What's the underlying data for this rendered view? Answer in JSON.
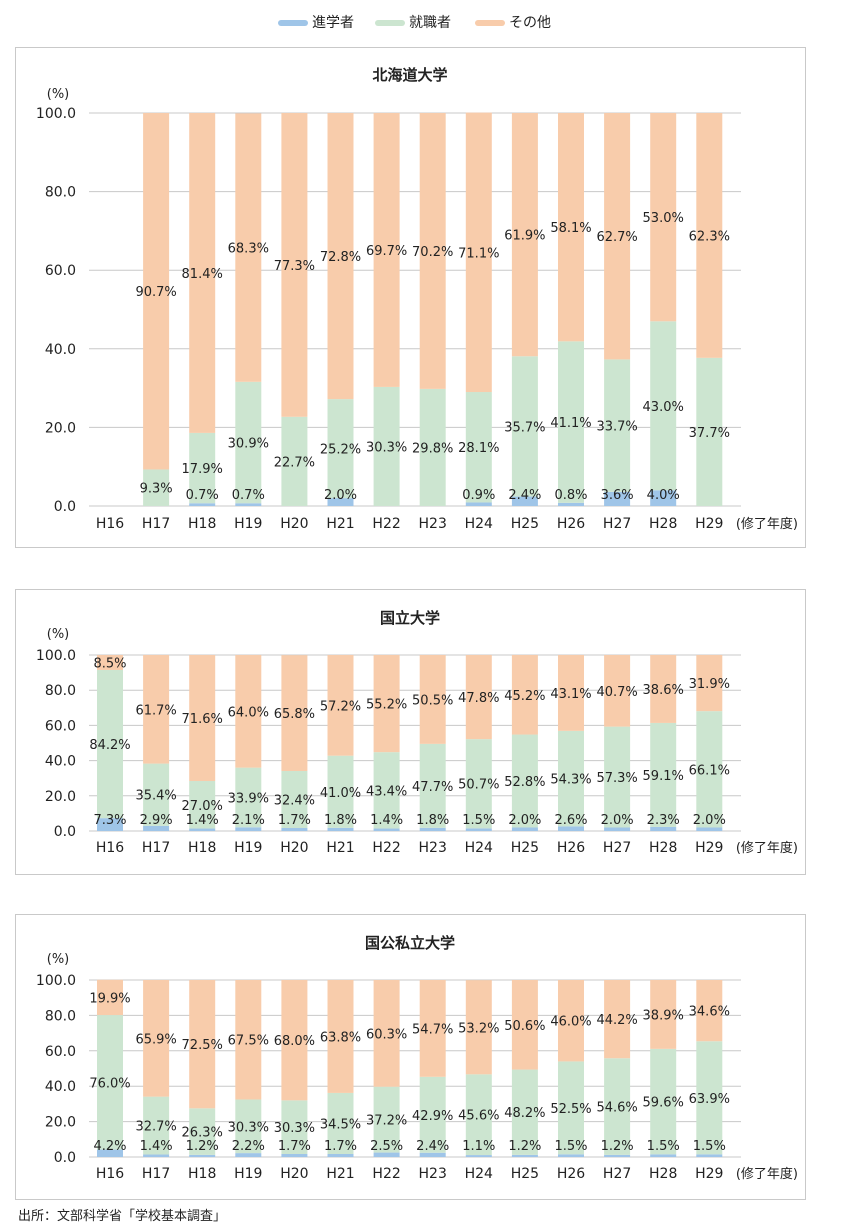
{
  "legend": [
    {
      "label": "進学者",
      "color": "#9fc5e8"
    },
    {
      "label": "就職者",
      "color": "#cce5d0"
    },
    {
      "label": "その他",
      "color": "#f8ccab"
    }
  ],
  "source_note": "出所：文部科学省「学校基本調査」",
  "chart_data": [
    {
      "type": "bar",
      "stacked": true,
      "title": "北海道大学",
      "ylabel": "(%)",
      "xlabel": "(修了年度)",
      "ylim": [
        0,
        100
      ],
      "yticks": [
        "0.0",
        "20.0",
        "40.0",
        "60.0",
        "80.0",
        "100.0"
      ],
      "categories": [
        "H16",
        "H17",
        "H18",
        "H19",
        "H20",
        "H21",
        "H22",
        "H23",
        "H24",
        "H25",
        "H26",
        "H27",
        "H28",
        "H29"
      ],
      "series": [
        {
          "name": "進学者",
          "color": "#9fc5e8",
          "values": [
            null,
            0,
            0.7,
            0.7,
            0,
            2.0,
            0,
            0,
            0.9,
            2.4,
            0.8,
            3.6,
            4.0,
            0
          ],
          "labels": [
            "",
            "",
            "0.7%",
            "0.7%",
            "",
            "2.0%",
            "",
            "",
            "0.9%",
            "2.4%",
            "0.8%",
            "3.6%",
            "4.0%",
            ""
          ]
        },
        {
          "name": "就職者",
          "color": "#cce5d0",
          "values": [
            null,
            9.3,
            17.9,
            30.9,
            22.7,
            25.2,
            30.3,
            29.8,
            28.1,
            35.7,
            41.1,
            33.7,
            43.0,
            37.7
          ],
          "labels": [
            "",
            "9.3%",
            "17.9%",
            "30.9%",
            "22.7%",
            "25.2%",
            "30.3%",
            "29.8%",
            "28.1%",
            "35.7%",
            "41.1%",
            "33.7%",
            "43.0%",
            "37.7%"
          ]
        },
        {
          "name": "その他",
          "color": "#f8ccab",
          "values": [
            null,
            90.7,
            81.4,
            68.3,
            77.3,
            72.8,
            69.7,
            70.2,
            71.1,
            61.9,
            58.1,
            62.7,
            53.0,
            62.3
          ],
          "labels": [
            "",
            "90.7%",
            "81.4%",
            "68.3%",
            "77.3%",
            "72.8%",
            "69.7%",
            "70.2%",
            "71.1%",
            "61.9%",
            "58.1%",
            "62.7%",
            "53.0%",
            "62.3%"
          ]
        }
      ]
    },
    {
      "type": "bar",
      "stacked": true,
      "title": "国立大学",
      "ylabel": "(%)",
      "xlabel": "(修了年度)",
      "ylim": [
        0,
        100
      ],
      "yticks": [
        "0.0",
        "20.0",
        "40.0",
        "60.0",
        "80.0",
        "100.0"
      ],
      "categories": [
        "H16",
        "H17",
        "H18",
        "H19",
        "H20",
        "H21",
        "H22",
        "H23",
        "H24",
        "H25",
        "H26",
        "H27",
        "H28",
        "H29"
      ],
      "series": [
        {
          "name": "進学者",
          "color": "#9fc5e8",
          "values": [
            7.3,
            2.9,
            1.4,
            2.1,
            1.7,
            1.8,
            1.4,
            1.8,
            1.5,
            2.0,
            2.6,
            2.0,
            2.3,
            2.0
          ],
          "labels": [
            "7.3%",
            "2.9%",
            "1.4%",
            "2.1%",
            "1.7%",
            "1.8%",
            "1.4%",
            "1.8%",
            "1.5%",
            "2.0%",
            "2.6%",
            "2.0%",
            "2.3%",
            "2.0%"
          ]
        },
        {
          "name": "就職者",
          "color": "#cce5d0",
          "values": [
            84.2,
            35.4,
            27.0,
            33.9,
            32.4,
            41.0,
            43.4,
            47.7,
            50.7,
            52.8,
            54.3,
            57.3,
            59.1,
            66.1
          ],
          "labels": [
            "84.2%",
            "35.4%",
            "27.0%",
            "33.9%",
            "32.4%",
            "41.0%",
            "43.4%",
            "47.7%",
            "50.7%",
            "52.8%",
            "54.3%",
            "57.3%",
            "59.1%",
            "66.1%"
          ]
        },
        {
          "name": "その他",
          "color": "#f8ccab",
          "values": [
            8.5,
            61.7,
            71.6,
            64.0,
            65.8,
            57.2,
            55.2,
            50.5,
            47.8,
            45.2,
            43.1,
            40.7,
            38.6,
            31.9
          ],
          "labels": [
            "8.5%",
            "61.7%",
            "71.6%",
            "64.0%",
            "65.8%",
            "57.2%",
            "55.2%",
            "50.5%",
            "47.8%",
            "45.2%",
            "43.1%",
            "40.7%",
            "38.6%",
            "31.9%"
          ]
        }
      ]
    },
    {
      "type": "bar",
      "stacked": true,
      "title": "国公私立大学",
      "ylabel": "(%)",
      "xlabel": "(修了年度)",
      "ylim": [
        0,
        100
      ],
      "yticks": [
        "0.0",
        "20.0",
        "40.0",
        "60.0",
        "80.0",
        "100.0"
      ],
      "categories": [
        "H16",
        "H17",
        "H18",
        "H19",
        "H20",
        "H21",
        "H22",
        "H23",
        "H24",
        "H25",
        "H26",
        "H27",
        "H28",
        "H29"
      ],
      "series": [
        {
          "name": "進学者",
          "color": "#9fc5e8",
          "values": [
            4.2,
            1.4,
            1.2,
            2.2,
            1.7,
            1.7,
            2.5,
            2.4,
            1.1,
            1.2,
            1.5,
            1.2,
            1.5,
            1.5
          ],
          "labels": [
            "4.2%",
            "1.4%",
            "1.2%",
            "2.2%",
            "1.7%",
            "1.7%",
            "2.5%",
            "2.4%",
            "1.1%",
            "1.2%",
            "1.5%",
            "1.2%",
            "1.5%",
            "1.5%"
          ]
        },
        {
          "name": "就職者",
          "color": "#cce5d0",
          "values": [
            76.0,
            32.7,
            26.3,
            30.3,
            30.3,
            34.5,
            37.2,
            42.9,
            45.6,
            48.2,
            52.5,
            54.6,
            59.6,
            63.9
          ],
          "labels": [
            "76.0%",
            "32.7%",
            "26.3%",
            "30.3%",
            "30.3%",
            "34.5%",
            "37.2%",
            "42.9%",
            "45.6%",
            "48.2%",
            "52.5%",
            "54.6%",
            "59.6%",
            "63.9%"
          ]
        },
        {
          "name": "その他",
          "color": "#f8ccab",
          "values": [
            19.9,
            65.9,
            72.5,
            67.5,
            68.0,
            63.8,
            60.3,
            54.7,
            53.2,
            50.6,
            46.0,
            44.2,
            38.9,
            34.6
          ],
          "labels": [
            "19.9%",
            "65.9%",
            "72.5%",
            "67.5%",
            "68.0%",
            "63.8%",
            "60.3%",
            "54.7%",
            "53.2%",
            "50.6%",
            "46.0%",
            "44.2%",
            "38.9%",
            "34.6%"
          ]
        }
      ]
    }
  ]
}
